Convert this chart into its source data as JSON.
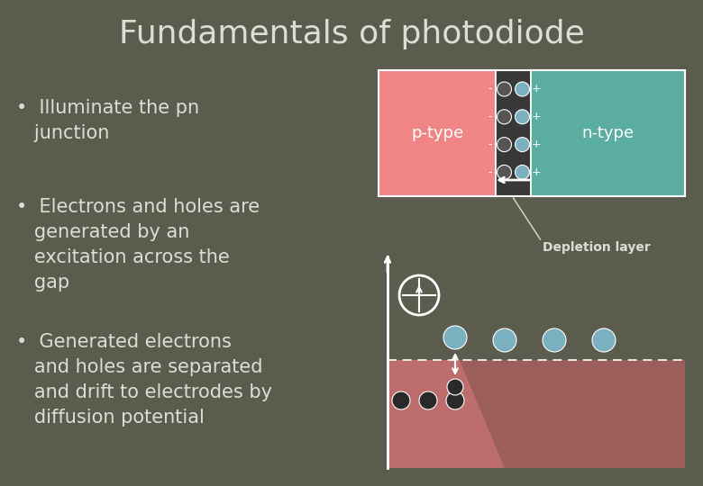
{
  "bg_color": "#5c5c4e",
  "title": "Fundamentals of photodiode",
  "title_color": "#ddddd5",
  "title_fontsize": 26,
  "bullet_texts": [
    "•  Illuminate the pn\n   junction",
    "•  Electrons and holes are\n   generated by an\n   excitation across the\n   gap",
    "•  Generated electrons\n   and holes are separated\n   and drift to electrodes by\n   diffusion potential"
  ],
  "text_color": "#ddddd5",
  "text_fontsize": 15,
  "ptype_color": "#f08585",
  "ntype_color": "#5aada0",
  "depletion_bg": "#383838",
  "electron_color": "#7ab0c0",
  "hole_color": "#222222",
  "white": "#ffffff"
}
